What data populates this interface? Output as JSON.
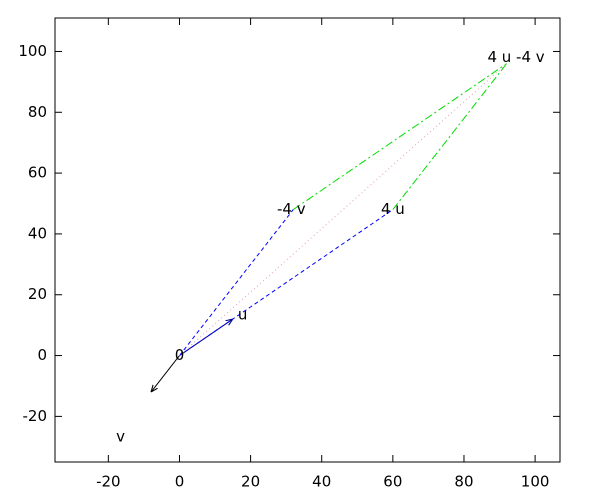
{
  "chart_data": {
    "type": "vector",
    "xlim": [
      -35,
      107
    ],
    "ylim": [
      -35,
      111
    ],
    "xticks": [
      -20,
      0,
      20,
      40,
      60,
      80,
      100
    ],
    "yticks": [
      -20,
      0,
      20,
      40,
      60,
      80,
      100
    ],
    "segments": [
      {
        "x": [
          0,
          15
        ],
        "y": [
          0,
          12
        ],
        "color": "#00008b",
        "dash": "solid",
        "arrow": true
      },
      {
        "x": [
          0,
          -8
        ],
        "y": [
          0,
          -12
        ],
        "color": "#000000",
        "dash": "solid",
        "arrow": true
      },
      {
        "x": [
          0,
          32
        ],
        "y": [
          0,
          48
        ],
        "color": "#0000ff",
        "dash": "dashed",
        "arrow": false
      },
      {
        "x": [
          0,
          60
        ],
        "y": [
          0,
          48
        ],
        "color": "#0000ff",
        "dash": "dashed",
        "arrow": false
      },
      {
        "x": [
          32,
          92
        ],
        "y": [
          48,
          96
        ],
        "color": "#00dd00",
        "dash": "dashdot",
        "arrow": false
      },
      {
        "x": [
          60,
          92
        ],
        "y": [
          48,
          96
        ],
        "color": "#00dd00",
        "dash": "dashdot",
        "arrow": false
      },
      {
        "x": [
          0,
          92
        ],
        "y": [
          0,
          96
        ],
        "color": "#e0a0b0",
        "dash": "dotted",
        "arrow": false
      }
    ],
    "points": [
      {
        "label": "0",
        "x": 0,
        "y": 0
      },
      {
        "label": "u",
        "x": 15,
        "y": 12
      },
      {
        "label": "v",
        "x": -8,
        "y": -12
      },
      {
        "label": "4 u",
        "x": 60,
        "y": 48
      },
      {
        "label": "-4 v",
        "x": 32,
        "y": 48
      },
      {
        "label": "4 u -4 v",
        "x": 92,
        "y": 96
      }
    ]
  }
}
